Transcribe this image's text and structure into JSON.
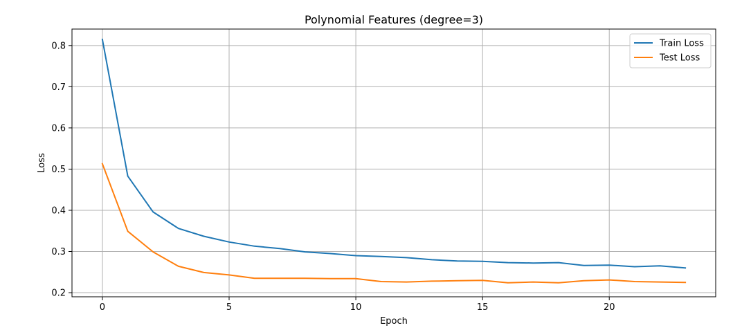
{
  "chart_data": {
    "type": "line",
    "title": "Polynomial Features (degree=3)",
    "xlabel": "Epoch",
    "ylabel": "Loss",
    "xlim": [
      -1.2,
      24.2
    ],
    "ylim": [
      0.19,
      0.84
    ],
    "xticks": [
      0,
      5,
      10,
      15,
      20
    ],
    "yticks": [
      0.2,
      0.3,
      0.4,
      0.5,
      0.6,
      0.7,
      0.8
    ],
    "grid": true,
    "legend_position": "top-right",
    "x": [
      0,
      1,
      2,
      3,
      4,
      5,
      6,
      7,
      8,
      9,
      10,
      11,
      12,
      13,
      14,
      15,
      16,
      17,
      18,
      19,
      20,
      21,
      22,
      23
    ],
    "series": [
      {
        "name": "Train Loss",
        "color": "#1f77b4",
        "values": [
          0.815,
          0.483,
          0.396,
          0.356,
          0.337,
          0.323,
          0.313,
          0.307,
          0.299,
          0.295,
          0.29,
          0.288,
          0.285,
          0.28,
          0.277,
          0.276,
          0.273,
          0.272,
          0.273,
          0.266,
          0.267,
          0.263,
          0.265,
          0.26
        ]
      },
      {
        "name": "Test Loss",
        "color": "#ff7f0e",
        "values": [
          0.513,
          0.349,
          0.299,
          0.264,
          0.249,
          0.243,
          0.235,
          0.235,
          0.235,
          0.234,
          0.234,
          0.227,
          0.226,
          0.228,
          0.229,
          0.23,
          0.224,
          0.226,
          0.224,
          0.229,
          0.231,
          0.227,
          0.226,
          0.225
        ]
      }
    ]
  }
}
